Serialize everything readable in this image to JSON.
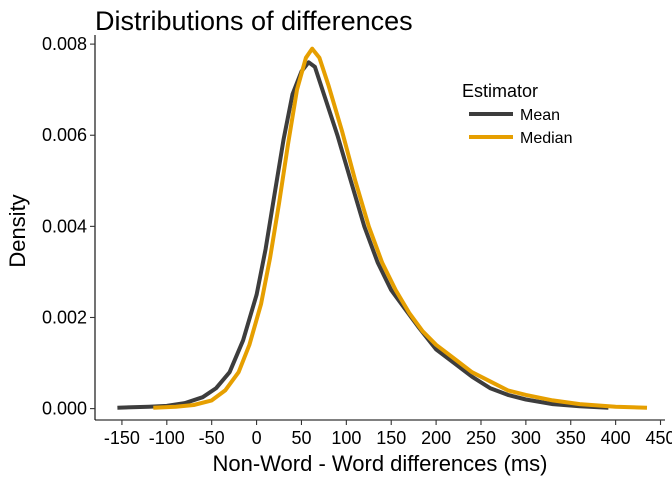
{
  "chart_data": {
    "type": "line",
    "title": "Distributions of differences",
    "xlabel": "Non-Word - Word differences (ms)",
    "ylabel": "Density",
    "xlim": [
      -180,
      455
    ],
    "ylim": [
      -0.00025,
      0.0082
    ],
    "x_ticks": [
      -150,
      -100,
      -50,
      0,
      50,
      100,
      150,
      200,
      250,
      300,
      350,
      400,
      450
    ],
    "y_ticks": [
      0.0,
      0.002,
      0.004,
      0.006,
      0.008
    ],
    "y_tick_labels": [
      "0.000",
      "0.002",
      "0.004",
      "0.006",
      "0.008"
    ],
    "grid": false,
    "legend": {
      "title": "Estimator",
      "position": "top-right",
      "entries": [
        "Mean",
        "Median"
      ]
    },
    "series": [
      {
        "name": "Mean",
        "color": "#3d3d3d",
        "points": [
          [
            -155,
            2e-05
          ],
          [
            -120,
            4e-05
          ],
          [
            -100,
            6e-05
          ],
          [
            -80,
            0.00012
          ],
          [
            -60,
            0.00025
          ],
          [
            -45,
            0.00045
          ],
          [
            -30,
            0.0008
          ],
          [
            -15,
            0.0015
          ],
          [
            0,
            0.0025
          ],
          [
            10,
            0.0035
          ],
          [
            20,
            0.0047
          ],
          [
            30,
            0.0059
          ],
          [
            40,
            0.0069
          ],
          [
            50,
            0.0074
          ],
          [
            58,
            0.0076
          ],
          [
            65,
            0.0075
          ],
          [
            75,
            0.0069
          ],
          [
            90,
            0.006
          ],
          [
            105,
            0.005
          ],
          [
            120,
            0.004
          ],
          [
            135,
            0.0032
          ],
          [
            150,
            0.0026
          ],
          [
            165,
            0.0022
          ],
          [
            180,
            0.0018
          ],
          [
            200,
            0.0013
          ],
          [
            220,
            0.001
          ],
          [
            240,
            0.0007
          ],
          [
            260,
            0.00045
          ],
          [
            280,
            0.0003
          ],
          [
            300,
            0.0002
          ],
          [
            330,
            0.0001
          ],
          [
            360,
            5e-05
          ],
          [
            392,
            2e-05
          ]
        ]
      },
      {
        "name": "Median",
        "color": "#e69f00",
        "points": [
          [
            -115,
            2e-05
          ],
          [
            -90,
            4e-05
          ],
          [
            -70,
            8e-05
          ],
          [
            -50,
            0.00018
          ],
          [
            -35,
            0.0004
          ],
          [
            -20,
            0.0008
          ],
          [
            -8,
            0.0014
          ],
          [
            5,
            0.0023
          ],
          [
            15,
            0.0033
          ],
          [
            25,
            0.0045
          ],
          [
            35,
            0.0058
          ],
          [
            45,
            0.007
          ],
          [
            55,
            0.0077
          ],
          [
            62,
            0.0079
          ],
          [
            70,
            0.0077
          ],
          [
            80,
            0.0071
          ],
          [
            95,
            0.0061
          ],
          [
            110,
            0.005
          ],
          [
            125,
            0.004
          ],
          [
            140,
            0.0032
          ],
          [
            155,
            0.0026
          ],
          [
            170,
            0.0021
          ],
          [
            185,
            0.0017
          ],
          [
            200,
            0.0014
          ],
          [
            220,
            0.0011
          ],
          [
            240,
            0.0008
          ],
          [
            260,
            0.0006
          ],
          [
            280,
            0.0004
          ],
          [
            300,
            0.0003
          ],
          [
            330,
            0.00018
          ],
          [
            360,
            0.0001
          ],
          [
            400,
            4e-05
          ],
          [
            435,
            2e-05
          ]
        ]
      }
    ]
  }
}
